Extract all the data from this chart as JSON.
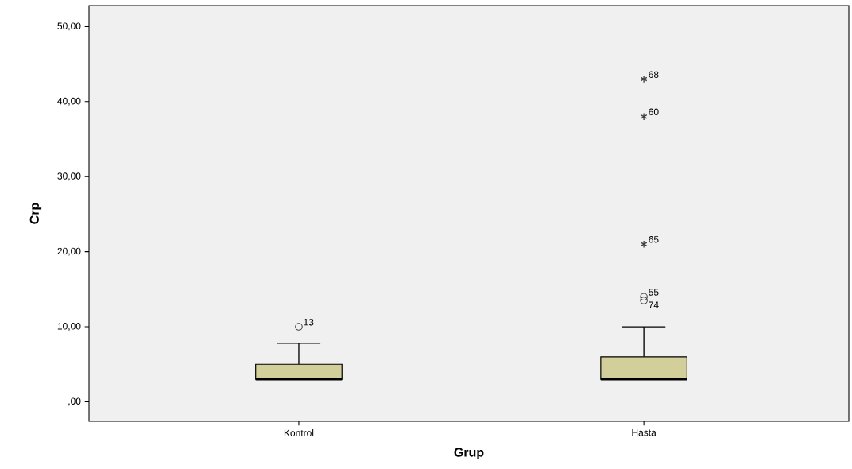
{
  "chart_data": {
    "type": "box",
    "xlabel": "Grup",
    "ylabel": "Crp",
    "categories": [
      "Kontrol",
      "Hasta"
    ],
    "boxes": [
      {
        "low": 3,
        "q1": 3,
        "median": 3,
        "q3": 5,
        "high": 7.8,
        "outliers": [
          10
        ]
      },
      {
        "low": 3,
        "q1": 3,
        "median": 3,
        "q3": 6,
        "high": 10,
        "outliers": [
          13.5,
          14,
          21,
          38,
          43
        ]
      }
    ],
    "color": "#d3cf9b",
    "ylim": [
      -2.6,
      52.8
    ],
    "yticks": [
      {
        "value": 0,
        "label": ",00"
      },
      {
        "value": 10,
        "label": "10,00"
      },
      {
        "value": 20,
        "label": "20,00"
      },
      {
        "value": 30,
        "label": "30,00"
      },
      {
        "value": 40,
        "label": "40,00"
      },
      {
        "value": 50,
        "label": "50,00"
      }
    ],
    "grid": false,
    "annotations": [
      "13",
      "74",
      "55",
      "65",
      "60",
      "68"
    ]
  }
}
